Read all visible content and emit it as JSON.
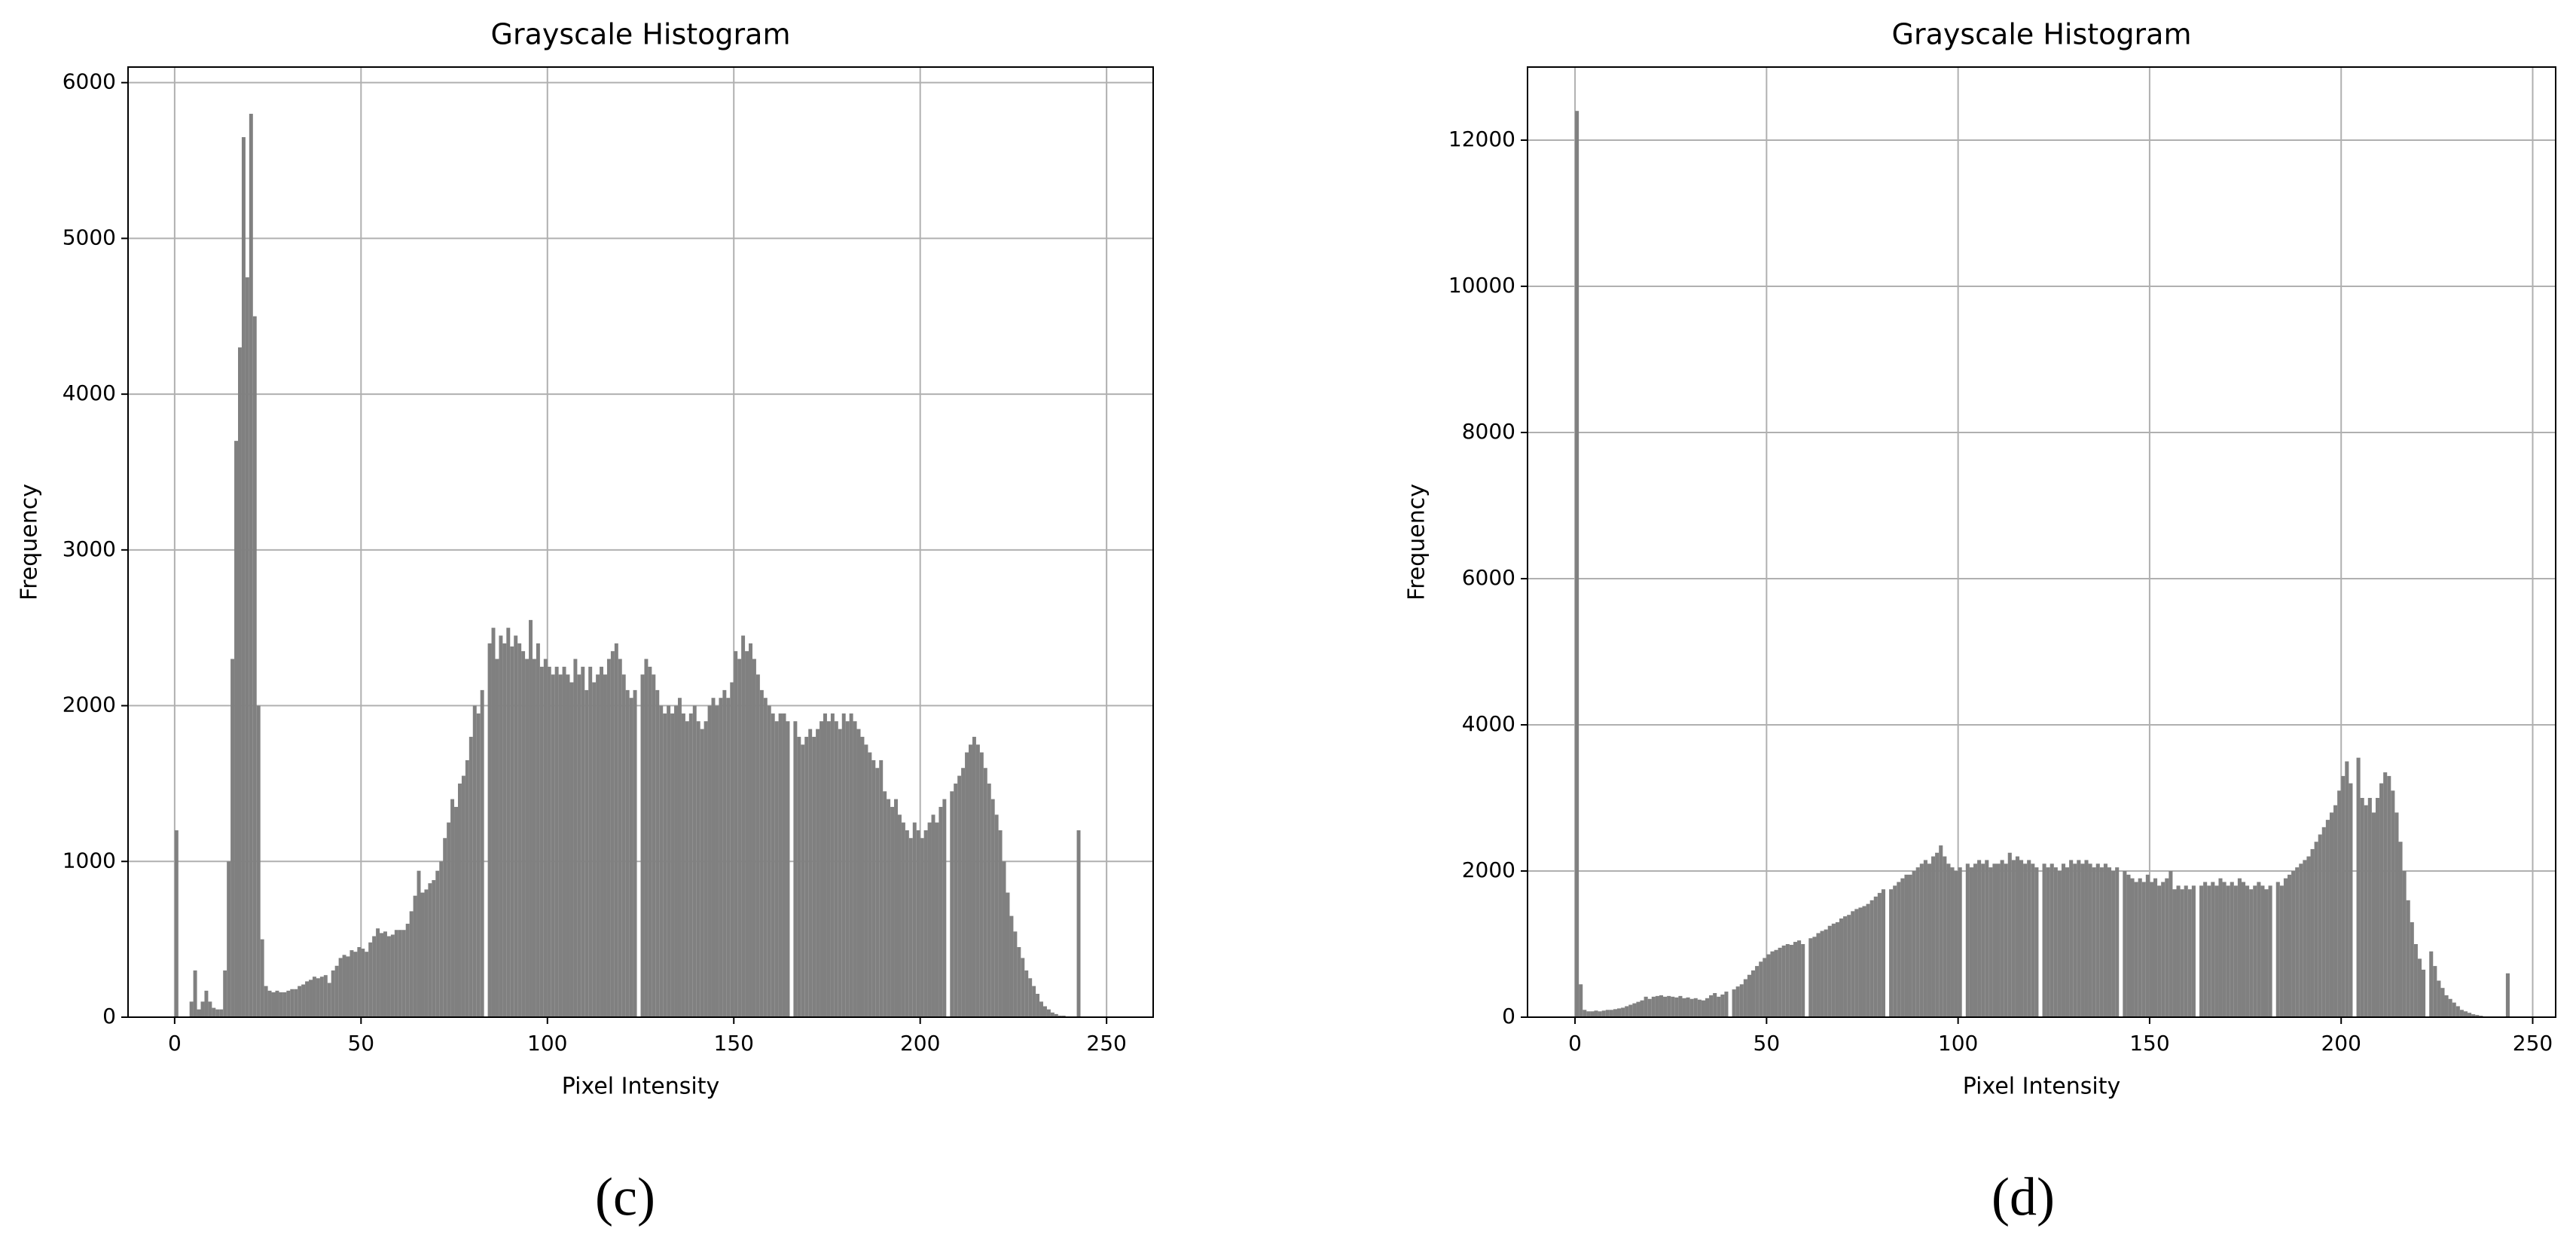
{
  "chart_data": [
    {
      "type": "histogram",
      "title": "Grayscale Histogram",
      "x_label": "Pixel Intensity",
      "y_label": "Frequency",
      "caption": "(c)",
      "color": "#808080",
      "grid": true,
      "xlim": [
        -12.5,
        262.5
      ],
      "xticks": [
        0,
        50,
        100,
        150,
        200,
        250
      ],
      "ylim": [
        0,
        6100
      ],
      "yticks": [
        0,
        1000,
        2000,
        3000,
        4000,
        5000,
        6000
      ],
      "bins": [
        0,
        1,
        2,
        3,
        4,
        5,
        6,
        7,
        8,
        9,
        10,
        11,
        12,
        13,
        14,
        15,
        16,
        17,
        18,
        19,
        20,
        21,
        22,
        23,
        24,
        25,
        26,
        27,
        28,
        29,
        30,
        31,
        32,
        33,
        34,
        35,
        36,
        37,
        38,
        39,
        40,
        41,
        42,
        43,
        44,
        45,
        46,
        47,
        48,
        49,
        50,
        51,
        52,
        53,
        54,
        55,
        56,
        57,
        58,
        59,
        60,
        61,
        62,
        63,
        64,
        65,
        66,
        67,
        68,
        69,
        70,
        71,
        72,
        73,
        74,
        75,
        76,
        77,
        78,
        79,
        80,
        81,
        82,
        83,
        84,
        85,
        86,
        87,
        88,
        89,
        90,
        91,
        92,
        93,
        94,
        95,
        96,
        97,
        98,
        99,
        100,
        101,
        102,
        103,
        104,
        105,
        106,
        107,
        108,
        109,
        110,
        111,
        112,
        113,
        114,
        115,
        116,
        117,
        118,
        119,
        120,
        121,
        122,
        123,
        124,
        125,
        126,
        127,
        128,
        129,
        130,
        131,
        132,
        133,
        134,
        135,
        136,
        137,
        138,
        139,
        140,
        141,
        142,
        143,
        144,
        145,
        146,
        147,
        148,
        149,
        150,
        151,
        152,
        153,
        154,
        155,
        156,
        157,
        158,
        159,
        160,
        161,
        162,
        163,
        164,
        165,
        166,
        167,
        168,
        169,
        170,
        171,
        172,
        173,
        174,
        175,
        176,
        177,
        178,
        179,
        180,
        181,
        182,
        183,
        184,
        185,
        186,
        187,
        188,
        189,
        190,
        191,
        192,
        193,
        194,
        195,
        196,
        197,
        198,
        199,
        200,
        201,
        202,
        203,
        204,
        205,
        206,
        207,
        208,
        209,
        210,
        211,
        212,
        213,
        214,
        215,
        216,
        217,
        218,
        219,
        220,
        221,
        222,
        223,
        224,
        225,
        226,
        227,
        228,
        229,
        230,
        231,
        232,
        233,
        234,
        235,
        236,
        237,
        238,
        239,
        240,
        241,
        242,
        243,
        244,
        245,
        246,
        247,
        248,
        249,
        250
      ],
      "values": [
        1200,
        0,
        0,
        0,
        100,
        300,
        50,
        100,
        170,
        100,
        60,
        50,
        50,
        300,
        1000,
        2300,
        3700,
        4300,
        5650,
        4750,
        5800,
        4500,
        2000,
        500,
        200,
        170,
        160,
        170,
        160,
        160,
        170,
        180,
        180,
        200,
        210,
        230,
        240,
        260,
        250,
        260,
        270,
        220,
        300,
        330,
        380,
        400,
        390,
        430,
        420,
        450,
        440,
        420,
        480,
        520,
        570,
        540,
        550,
        520,
        530,
        560,
        560,
        560,
        600,
        680,
        780,
        940,
        800,
        820,
        860,
        880,
        940,
        1000,
        1150,
        1250,
        1400,
        1350,
        1500,
        1550,
        1650,
        1800,
        2000,
        1950,
        2100,
        0,
        2400,
        2500,
        2300,
        2450,
        2400,
        2500,
        2380,
        2450,
        2400,
        2350,
        2300,
        2550,
        2300,
        2400,
        2250,
        2300,
        2250,
        2200,
        2250,
        2200,
        2250,
        2200,
        2150,
        2300,
        2200,
        2250,
        2100,
        2250,
        2150,
        2200,
        2250,
        2200,
        2300,
        2350,
        2400,
        2300,
        2200,
        2100,
        2050,
        2100,
        0,
        2200,
        2300,
        2250,
        2200,
        2100,
        2000,
        1950,
        2000,
        1950,
        2000,
        2050,
        1950,
        1900,
        1950,
        2000,
        1900,
        1850,
        1900,
        2000,
        2050,
        2000,
        2050,
        2100,
        2050,
        2150,
        2350,
        2300,
        2450,
        2350,
        2400,
        2300,
        2200,
        2100,
        2050,
        2000,
        1950,
        1900,
        1950,
        1950,
        1900,
        0,
        1900,
        1800,
        1750,
        1800,
        1850,
        1800,
        1850,
        1900,
        1950,
        1900,
        1950,
        1900,
        1850,
        1950,
        1900,
        1950,
        1900,
        1850,
        1800,
        1750,
        1700,
        1650,
        1600,
        1650,
        1450,
        1400,
        1350,
        1400,
        1300,
        1250,
        1200,
        1150,
        1250,
        1200,
        1150,
        1200,
        1250,
        1300,
        1250,
        1350,
        1400,
        0,
        1450,
        1500,
        1550,
        1600,
        1700,
        1750,
        1800,
        1750,
        1700,
        1600,
        1500,
        1400,
        1300,
        1200,
        1000,
        800,
        650,
        550,
        450,
        380,
        300,
        250,
        200,
        150,
        100,
        70,
        50,
        30,
        20,
        10,
        10,
        5,
        0,
        0,
        1200,
        0,
        0,
        0,
        0,
        0,
        0,
        0
      ]
    },
    {
      "type": "histogram",
      "title": "Grayscale Histogram",
      "x_label": "Pixel Intensity",
      "y_label": "Frequency",
      "caption": "(d)",
      "color": "#808080",
      "grid": true,
      "xlim": [
        -12.4,
        256
      ],
      "xticks": [
        0,
        50,
        100,
        150,
        200,
        250
      ],
      "ylim": [
        0,
        13000
      ],
      "yticks": [
        0,
        2000,
        4000,
        6000,
        8000,
        10000,
        12000
      ],
      "bins": [
        0,
        1,
        2,
        3,
        4,
        5,
        6,
        7,
        8,
        9,
        10,
        11,
        12,
        13,
        14,
        15,
        16,
        17,
        18,
        19,
        20,
        21,
        22,
        23,
        24,
        25,
        26,
        27,
        28,
        29,
        30,
        31,
        32,
        33,
        34,
        35,
        36,
        37,
        38,
        39,
        40,
        41,
        42,
        43,
        44,
        45,
        46,
        47,
        48,
        49,
        50,
        51,
        52,
        53,
        54,
        55,
        56,
        57,
        58,
        59,
        60,
        61,
        62,
        63,
        64,
        65,
        66,
        67,
        68,
        69,
        70,
        71,
        72,
        73,
        74,
        75,
        76,
        77,
        78,
        79,
        80,
        81,
        82,
        83,
        84,
        85,
        86,
        87,
        88,
        89,
        90,
        91,
        92,
        93,
        94,
        95,
        96,
        97,
        98,
        99,
        100,
        101,
        102,
        103,
        104,
        105,
        106,
        107,
        108,
        109,
        110,
        111,
        112,
        113,
        114,
        115,
        116,
        117,
        118,
        119,
        120,
        121,
        122,
        123,
        124,
        125,
        126,
        127,
        128,
        129,
        130,
        131,
        132,
        133,
        134,
        135,
        136,
        137,
        138,
        139,
        140,
        141,
        142,
        143,
        144,
        145,
        146,
        147,
        148,
        149,
        150,
        151,
        152,
        153,
        154,
        155,
        156,
        157,
        158,
        159,
        160,
        161,
        162,
        163,
        164,
        165,
        166,
        167,
        168,
        169,
        170,
        171,
        172,
        173,
        174,
        175,
        176,
        177,
        178,
        179,
        180,
        181,
        182,
        183,
        184,
        185,
        186,
        187,
        188,
        189,
        190,
        191,
        192,
        193,
        194,
        195,
        196,
        197,
        198,
        199,
        200,
        201,
        202,
        203,
        204,
        205,
        206,
        207,
        208,
        209,
        210,
        211,
        212,
        213,
        214,
        215,
        216,
        217,
        218,
        219,
        220,
        221,
        222,
        223,
        224,
        225,
        226,
        227,
        228,
        229,
        230,
        231,
        232,
        233,
        234,
        235,
        236,
        237,
        238,
        239,
        240,
        241,
        242,
        243,
        244,
        245,
        246,
        247,
        248,
        249,
        250
      ],
      "values": [
        12400,
        450,
        100,
        80,
        80,
        90,
        80,
        90,
        100,
        100,
        110,
        120,
        130,
        150,
        170,
        190,
        210,
        230,
        280,
        250,
        280,
        290,
        300,
        280,
        290,
        280,
        270,
        290,
        260,
        270,
        250,
        260,
        240,
        230,
        260,
        300,
        330,
        280,
        310,
        350,
        0,
        380,
        420,
        450,
        520,
        580,
        640,
        700,
        760,
        810,
        860,
        900,
        920,
        950,
        980,
        1000,
        990,
        1030,
        1050,
        1000,
        0,
        1080,
        1100,
        1150,
        1180,
        1200,
        1250,
        1280,
        1300,
        1350,
        1380,
        1400,
        1450,
        1480,
        1500,
        1520,
        1550,
        1600,
        1650,
        1700,
        1750,
        0,
        1750,
        1800,
        1850,
        1900,
        1950,
        1950,
        2000,
        2050,
        2100,
        2150,
        2100,
        2200,
        2250,
        2350,
        2200,
        2100,
        2050,
        2000,
        2050,
        0,
        2100,
        2050,
        2100,
        2150,
        2100,
        2150,
        2050,
        2100,
        2100,
        2150,
        2100,
        2250,
        2150,
        2200,
        2150,
        2100,
        2150,
        2100,
        2050,
        0,
        2100,
        2050,
        2100,
        2050,
        2000,
        2100,
        2050,
        2150,
        2100,
        2150,
        2100,
        2150,
        2100,
        2050,
        2100,
        2050,
        2100,
        2050,
        2000,
        2050,
        0,
        2000,
        1950,
        1900,
        1850,
        1900,
        1850,
        1950,
        1850,
        1900,
        1800,
        1850,
        1900,
        2000,
        1750,
        1800,
        1750,
        1800,
        1750,
        1800,
        0,
        1800,
        1850,
        1800,
        1850,
        1800,
        1900,
        1850,
        1800,
        1850,
        1800,
        1900,
        1850,
        1800,
        1750,
        1800,
        1850,
        1800,
        1750,
        1800,
        0,
        1850,
        1800,
        1900,
        1950,
        2000,
        2050,
        2100,
        2150,
        2200,
        2300,
        2400,
        2500,
        2600,
        2700,
        2800,
        2900,
        3100,
        3300,
        3500,
        3200,
        0,
        3550,
        3000,
        2900,
        3000,
        2800,
        3000,
        3200,
        3350,
        3300,
        3100,
        2800,
        2400,
        2000,
        1600,
        1300,
        1000,
        800,
        650,
        0,
        900,
        700,
        500,
        400,
        300,
        250,
        200,
        150,
        100,
        80,
        60,
        40,
        30,
        20,
        10,
        10,
        10,
        0,
        0,
        0,
        600,
        0,
        0,
        0,
        0,
        0,
        0
      ]
    }
  ]
}
